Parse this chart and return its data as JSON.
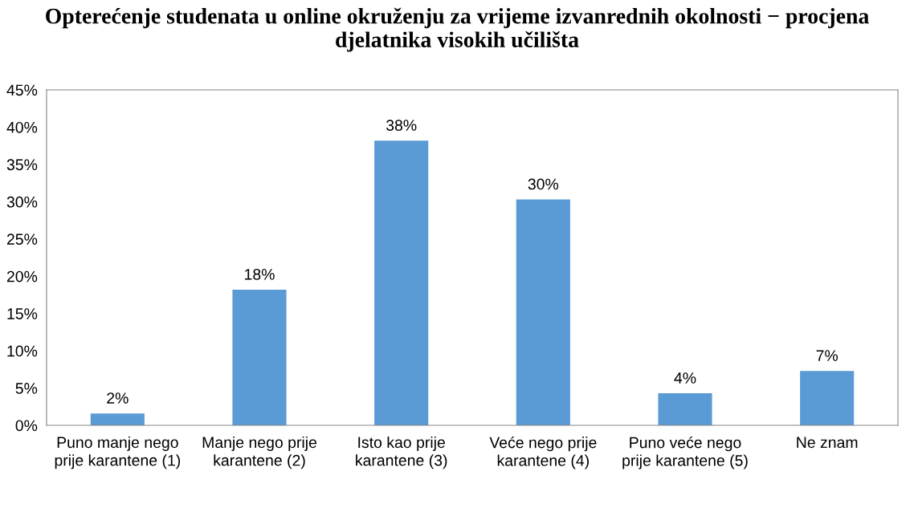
{
  "chart_data": {
    "type": "bar",
    "title": "Opterećenje studenata u online okruženju za vrijeme izvanrednih okolnosti − procjena djelatnika visokih učilišta",
    "categories": [
      "Puno manje nego prije karantene (1)",
      "Manje nego prije karantene (2)",
      "Isto kao prije karantene (3)",
      "Veće nego prije karantene (4)",
      "Puno veće nego prije karantene (5)",
      "Ne znam"
    ],
    "values": [
      1.6,
      18.2,
      38.2,
      30.3,
      4.3,
      7.3
    ],
    "value_labels": [
      "2%",
      "18%",
      "38%",
      "30%",
      "4%",
      "7%"
    ],
    "color": "#5b9bd5",
    "ylim": [
      0,
      45
    ],
    "yticks": [
      {
        "value": 0,
        "label": "0%"
      },
      {
        "value": 5,
        "label": "5%"
      },
      {
        "value": 10,
        "label": "10%"
      },
      {
        "value": 15,
        "label": "15%"
      },
      {
        "value": 20,
        "label": "20%"
      },
      {
        "value": 25,
        "label": "25%"
      },
      {
        "value": 30,
        "label": "30%"
      },
      {
        "value": 35,
        "label": "35%"
      },
      {
        "value": 40,
        "label": "40%"
      },
      {
        "value": 45,
        "label": "45%"
      }
    ],
    "grid": false,
    "legend": false
  }
}
